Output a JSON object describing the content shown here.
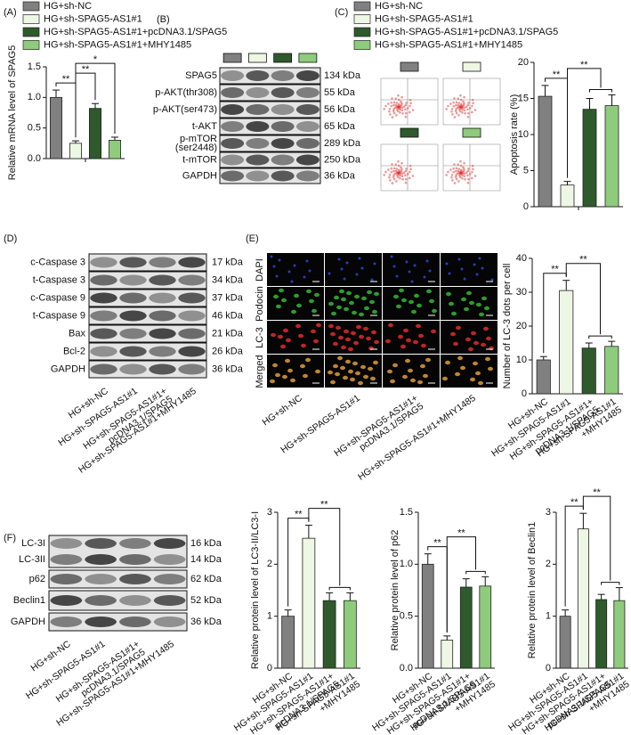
{
  "panel_labels": [
    "(A)",
    "(B)",
    "(C)",
    "(D)",
    "(E)",
    "(F)"
  ],
  "chart_data": [
    {
      "type": "bar",
      "ylabel": "Relative mRNA level of SPAG5",
      "categories": [
        null
      ],
      "ylim": [
        0,
        1.5
      ],
      "yticks": [
        {
          "value": 0,
          "label": "0.0"
        },
        {
          "value": 0.5,
          "label": "0.5"
        },
        {
          "value": 1,
          "label": "1.0"
        },
        {
          "value": 1.5,
          "label": "1.5"
        }
      ],
      "series": [
        {
          "name": "HG+sh-NC",
          "color": "#808080",
          "values": [
            1.0
          ],
          "errors": [
            0.12
          ]
        },
        {
          "name": "HG+sh-SPAG5-AS1#1",
          "color": "#eef6e4",
          "values": [
            0.25
          ],
          "errors": [
            0.04
          ]
        },
        {
          "name": "HG+sh-SPAG5-AS1#1+pcDNA3.1/SPAG5",
          "color": "#2e5a2c",
          "values": [
            0.82
          ],
          "errors": [
            0.08
          ]
        },
        {
          "name": "HG+sh-SPAG5-AS1#1+MHY1485",
          "color": "#8fcb7c",
          "values": [
            0.3
          ],
          "errors": [
            0.05
          ]
        }
      ],
      "significance": [
        "**",
        "**",
        "*"
      ]
    },
    {
      "type": "bar",
      "ylabel": "Apoptosis rate (%)",
      "categories": [
        null
      ],
      "ylim": [
        0,
        20
      ],
      "yticks": [
        0,
        5,
        10,
        15,
        20
      ],
      "series": [
        {
          "name": "HG+sh-NC",
          "color": "#808080",
          "values": [
            15.3
          ],
          "errors": [
            1.5
          ]
        },
        {
          "name": "HG+sh-SPAG5-AS1#1",
          "color": "#eef6e4",
          "values": [
            3.0
          ],
          "errors": [
            0.5
          ]
        },
        {
          "name": "HG+sh-SPAG5-AS1#1+pcDNA3.1/SPAG5",
          "color": "#2e5a2c",
          "values": [
            13.5
          ],
          "errors": [
            1.5
          ]
        },
        {
          "name": "HG+sh-SPAG5-AS1#1+MHY1485",
          "color": "#8fcb7c",
          "values": [
            14.0
          ],
          "errors": [
            1.5
          ]
        }
      ],
      "significance": [
        "**",
        "**"
      ]
    },
    {
      "type": "bar",
      "ylabel": "Number of LC-3 dots per cell",
      "ylim": [
        0,
        40
      ],
      "yticks": [
        0,
        10,
        20,
        30,
        40
      ],
      "categories": [
        "HG+sh-NC",
        "HG+sh-SPAG5-AS1#1",
        [
          "HG+sh-SPAG5-AS1#1+",
          "pcDNA3.1/SPAG5"
        ],
        [
          "HG+sh-SPAG5-AS1#1",
          "+MHY1485"
        ]
      ],
      "colors": [
        "#808080",
        "#eef6e4",
        "#2e5a2c",
        "#8fcb7c"
      ],
      "values": [
        10,
        30.5,
        13.5,
        14
      ],
      "errors": [
        1,
        3,
        1.5,
        1.5
      ],
      "significance": [
        "**",
        "**"
      ]
    },
    {
      "type": "bar",
      "ylabel": "Relative protein level of LC3-II/LC3-I",
      "ylim": [
        0,
        3
      ],
      "yticks": [
        0,
        1,
        2,
        3
      ],
      "categories": [
        "HG+sh-NC",
        "HG+sh-SPAG5-AS1#1",
        [
          "HG+sh-SPAG5-AS1#1+",
          "pcDNA3.1/SPAG5"
        ],
        [
          "HG+sh-SPAG5-AS1#1",
          "+MHY1485"
        ]
      ],
      "colors": [
        "#808080",
        "#eef6e4",
        "#2e5a2c",
        "#8fcb7c"
      ],
      "values": [
        1.0,
        2.5,
        1.3,
        1.3
      ],
      "errors": [
        0.12,
        0.25,
        0.15,
        0.15
      ],
      "significance": [
        "**",
        "**"
      ]
    },
    {
      "type": "bar",
      "ylabel": "Relative protein level of p62",
      "ylim": [
        0,
        1.5
      ],
      "yticks": [
        {
          "value": 0,
          "label": "0.0"
        },
        {
          "value": 0.5,
          "label": "0.5"
        },
        {
          "value": 1,
          "label": "1.0"
        },
        {
          "value": 1.5,
          "label": "1.5"
        }
      ],
      "categories": [
        "HG+sh-NC",
        "HG+sh-SPAG5-AS1#1",
        [
          "HG+sh-SPAG5-AS1#1+",
          "pcDNA3.1/SPAG5"
        ],
        [
          "HG+sh-SPAG5-AS1#1",
          "+MHY1485"
        ]
      ],
      "colors": [
        "#808080",
        "#eef6e4",
        "#2e5a2c",
        "#8fcb7c"
      ],
      "values": [
        1.0,
        0.27,
        0.78,
        0.79
      ],
      "errors": [
        0.1,
        0.04,
        0.08,
        0.09
      ],
      "significance": [
        "**",
        "**"
      ]
    },
    {
      "type": "bar",
      "ylabel": "Relative protein level of Beclin1",
      "ylim": [
        0,
        3
      ],
      "yticks": [
        0,
        1,
        2,
        3
      ],
      "categories": [
        "HG+sh-NC",
        "HG+sh-SPAG5-AS1#1",
        [
          "HG+sh-SPAG5-AS1#1+",
          "pcDNA3.1/SPAG5"
        ],
        [
          "HG+sh-SPAG5-AS1#1",
          "+MHY1485"
        ]
      ],
      "colors": [
        "#808080",
        "#eef6e4",
        "#2e5a2c",
        "#8fcb7c"
      ],
      "values": [
        1.0,
        2.68,
        1.32,
        1.3
      ],
      "errors": [
        0.12,
        0.3,
        0.1,
        0.25
      ],
      "significance": [
        "**",
        "**"
      ]
    }
  ],
  "blots": {
    "B": {
      "rows": [
        {
          "label": "SPAG5",
          "kda": "134 kDa"
        },
        {
          "label": "p-AKT(thr308)",
          "kda": "55 kDa"
        },
        {
          "label": "p-AKT(ser473)",
          "kda": "56 kDa"
        },
        {
          "label": "t-AKT",
          "kda": "65 kDa"
        },
        {
          "label": [
            "p-mTOR",
            "(ser2448)"
          ],
          "kda": "289 kDa"
        },
        {
          "label": "t-mTOR",
          "kda": "250 kDa"
        },
        {
          "label": "GAPDH",
          "kda": "36 kDa"
        }
      ]
    },
    "D": {
      "rows": [
        {
          "label": "c-Caspase 3",
          "kda": "17 kDa"
        },
        {
          "label": "t-Caspase 3",
          "kda": "34 kDa"
        },
        {
          "label": "c-Caspase 9",
          "kda": "37 kDa"
        },
        {
          "label": "t-Caspase 9",
          "kda": "46 kDa"
        },
        {
          "label": "Bax",
          "kda": "21 kDa"
        },
        {
          "label": "Bcl-2",
          "kda": "26 kDa"
        },
        {
          "label": "GAPDH",
          "kda": "36 kDa"
        }
      ],
      "categories": [
        "HG+sh-NC",
        "HG+sh-SPAG5-AS1#1",
        [
          "HG+sh-SPAG5-AS1#1+",
          "pcDNA3.1/SPAG5"
        ],
        "HG+sh-SPAG5-AS1#1+MHY1485"
      ]
    },
    "F": {
      "rows": [
        {
          "label": [
            "LC-3I",
            "LC-3II"
          ],
          "kda": [
            "16 kDa",
            "14 kDa"
          ]
        },
        {
          "label": "p62",
          "kda": "62 kDa"
        },
        {
          "label": "Beclin1",
          "kda": "52 kDa"
        },
        {
          "label": "GAPDH",
          "kda": "36 kDa"
        }
      ],
      "categories": [
        "HG+sh-NC",
        "HG+sh-SPAG5-AS1#1",
        [
          "HG+sh-SPAG5-AS1#1+",
          "pcDNA3.1/SPAG5"
        ],
        "HG+sh-SPAG5-AS1#1+MHY1485"
      ]
    }
  },
  "images": {
    "rows": [
      "DAPI",
      "Podocin",
      "LC-3",
      "Merged"
    ],
    "categories": [
      "HG+sh-NC",
      "HG+sh-SPAG5-AS1#1",
      [
        "HG+sh-SPAG5-AS1#1+",
        "pcDNA3.1/SPAG5"
      ],
      "HG+sh-SPAG5-AS1#1+MHY1485"
    ]
  }
}
